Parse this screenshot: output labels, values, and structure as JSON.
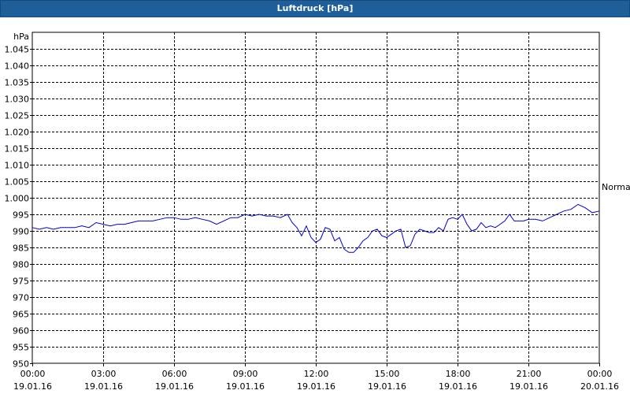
{
  "window": {
    "title": "Luftdruck [hPa]"
  },
  "chart_data": {
    "type": "line",
    "title": "Luftdruck [hPa]",
    "ylabel": "hPa",
    "ylim": [
      950,
      1050
    ],
    "yticks": [
      950,
      955,
      960,
      965,
      970,
      975,
      980,
      985,
      990,
      995,
      1000,
      1005,
      1010,
      1015,
      1020,
      1025,
      1030,
      1035,
      1040,
      1045
    ],
    "ytick_labels": [
      "950",
      "955",
      "960",
      "965",
      "970",
      "975",
      "980",
      "985",
      "990",
      "995",
      "1.000",
      "1.005",
      "1.010",
      "1.015",
      "1.020",
      "1.025",
      "1.030",
      "1.035",
      "1.040",
      "1.045"
    ],
    "xlim_hours": [
      0,
      24
    ],
    "xticks": [
      {
        "hours": 0,
        "time": "00:00",
        "date": "19.01.16"
      },
      {
        "hours": 3,
        "time": "03:00",
        "date": "19.01.16"
      },
      {
        "hours": 6,
        "time": "06:00",
        "date": "19.01.16"
      },
      {
        "hours": 9,
        "time": "09:00",
        "date": "19.01.16"
      },
      {
        "hours": 12,
        "time": "12:00",
        "date": "19.01.16"
      },
      {
        "hours": 15,
        "time": "15:00",
        "date": "19.01.16"
      },
      {
        "hours": 18,
        "time": "18:00",
        "date": "19.01.16"
      },
      {
        "hours": 21,
        "time": "21:00",
        "date": "19.01.16"
      },
      {
        "hours": 24,
        "time": "00:00",
        "date": "20.01.16"
      }
    ],
    "annotations": [
      {
        "text": "Normal",
        "y": 1003.3
      }
    ],
    "grid": true,
    "series": [
      {
        "color": "#0000cc",
        "x": [
          0,
          0.3,
          0.6,
          0.9,
          1.2,
          1.5,
          1.8,
          2.1,
          2.4,
          2.7,
          3.0,
          3.3,
          3.6,
          3.9,
          4.2,
          4.5,
          4.8,
          5.1,
          5.4,
          5.7,
          6.0,
          6.3,
          6.6,
          6.9,
          7.2,
          7.5,
          7.8,
          8.1,
          8.4,
          8.7,
          9.0,
          9.3,
          9.6,
          9.9,
          10.2,
          10.5,
          10.8,
          11.0,
          11.2,
          11.4,
          11.6,
          11.8,
          12.0,
          12.2,
          12.4,
          12.6,
          12.8,
          13.0,
          13.2,
          13.4,
          13.6,
          13.8,
          14.0,
          14.2,
          14.4,
          14.6,
          14.8,
          15.0,
          15.2,
          15.4,
          15.6,
          15.8,
          16.0,
          16.2,
          16.4,
          16.6,
          16.8,
          17.0,
          17.2,
          17.4,
          17.6,
          17.8,
          18.0,
          18.2,
          18.4,
          18.6,
          18.8,
          19.0,
          19.2,
          19.4,
          19.6,
          19.8,
          20.0,
          20.2,
          20.4,
          20.6,
          20.8,
          21.0,
          21.3,
          21.6,
          21.9,
          22.2,
          22.5,
          22.8,
          23.1,
          23.4,
          23.7,
          24.0
        ],
        "y": [
          991,
          990.5,
          991,
          990.5,
          991,
          991,
          991,
          991.5,
          991,
          992.5,
          992,
          991.5,
          992,
          992,
          992.5,
          993,
          993,
          993,
          993.5,
          994,
          994,
          993.5,
          993.5,
          994,
          993.5,
          993,
          992,
          993,
          994,
          994,
          995,
          994.5,
          995,
          994.5,
          994.5,
          994,
          995,
          992.5,
          991,
          988.5,
          991.5,
          988,
          986.5,
          987.5,
          991,
          990.5,
          987,
          988,
          984.5,
          983.5,
          983.5,
          985,
          987,
          988,
          990,
          990.5,
          988.5,
          988,
          989,
          990,
          990.5,
          985,
          985.5,
          989,
          990.5,
          990,
          989.5,
          989.5,
          991,
          990,
          993.5,
          994,
          993.5,
          995,
          992,
          990,
          990.5,
          992.5,
          991,
          991.5,
          991,
          992,
          993,
          995,
          993,
          993,
          993,
          993.5,
          993.5,
          993,
          994,
          995,
          996,
          996.5,
          998,
          997,
          995.5,
          996
        ]
      }
    ]
  }
}
